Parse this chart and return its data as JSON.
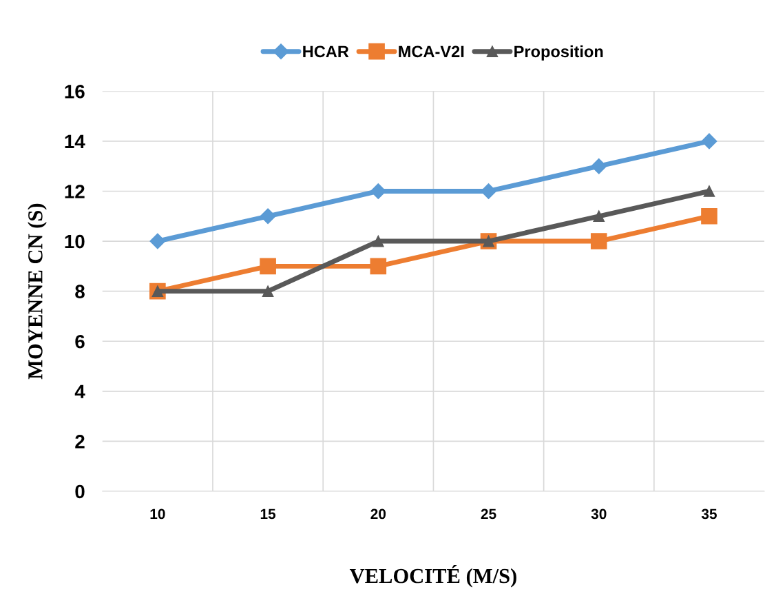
{
  "chart_data": {
    "type": "line",
    "xlabel": "VELOCITÉ (M/S)",
    "ylabel": "MOYENNE CN (S)",
    "categories": [
      "10",
      "15",
      "20",
      "25",
      "30",
      "35"
    ],
    "series": [
      {
        "name": "HCAR",
        "color": "#5b9bd5",
        "marker": "diamond",
        "values": [
          10,
          11,
          12,
          12,
          13,
          14
        ]
      },
      {
        "name": "MCA-V2I",
        "color": "#ed7d31",
        "marker": "square",
        "values": [
          8,
          9,
          9,
          10,
          10,
          11
        ]
      },
      {
        "name": "Proposition",
        "color": "#595959",
        "marker": "triangle",
        "values": [
          8,
          8,
          10,
          10,
          11,
          12
        ]
      }
    ],
    "ylim": [
      0,
      16
    ],
    "yticks": [
      0,
      2,
      4,
      6,
      8,
      10,
      12,
      14,
      16
    ],
    "grid": true,
    "legend": "top",
    "line_style": "solid"
  }
}
